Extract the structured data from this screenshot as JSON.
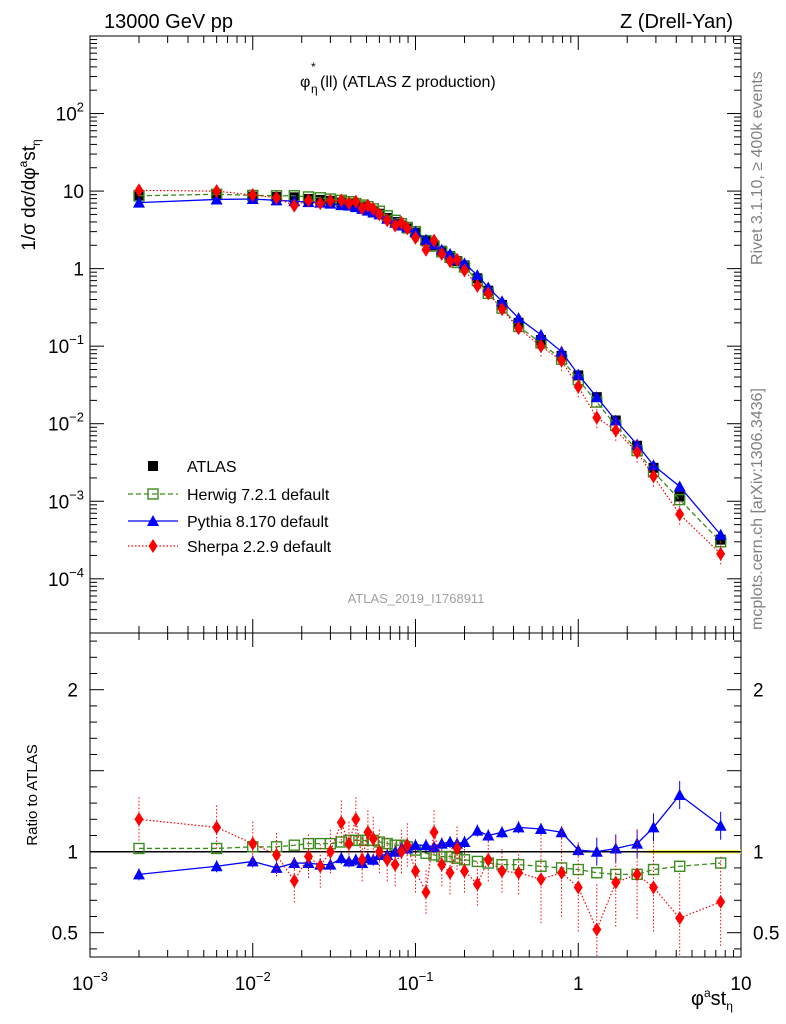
{
  "header": {
    "energy": "13000 GeV pp",
    "process": "Z (Drell-Yan)",
    "plot_title": "φ*η(ll) (ATLAS Z production)",
    "rivet_label": "Rivet 3.1.10, ≥ 400k events",
    "mcplots_label": "mcplots.cern.ch [arXiv:1306.3436]",
    "analysis": "ATLAS_2019_I1768911"
  },
  "axes": {
    "ylabel_top": "1/σ dσ/dφ*st_η",
    "ylabel_bottom": "Ratio to ATLAS",
    "xlabel": "φ*st_η",
    "x_range": [
      0.001,
      10
    ],
    "y_top_range": [
      2e-05,
      1000
    ],
    "y_ratio_range": [
      0.35,
      2.35
    ],
    "x_scale": "log",
    "y_top_scale": "log"
  },
  "colors": {
    "data": "#000000",
    "herwig": "#3a8c1d",
    "pythia": "#0000ff",
    "sherpa": "#ff0000",
    "band": "#ffff66"
  },
  "legend": [
    {
      "label": "ATLAS",
      "series": "data"
    },
    {
      "label": "Herwig 7.2.1 default",
      "series": "herwig"
    },
    {
      "label": "Pythia 8.170 default",
      "series": "pythia"
    },
    {
      "label": "Sherpa 2.2.9 default",
      "series": "sherpa"
    }
  ],
  "chart_data": {
    "type": "scatter",
    "x": [
      0.002,
      0.006,
      0.01,
      0.014,
      0.018,
      0.022,
      0.026,
      0.03,
      0.035,
      0.039,
      0.043,
      0.047,
      0.051,
      0.055,
      0.06,
      0.067,
      0.075,
      0.082,
      0.089,
      0.1,
      0.116,
      0.13,
      0.145,
      0.163,
      0.18,
      0.2,
      0.24,
      0.28,
      0.34,
      0.43,
      0.59,
      0.79,
      1.0,
      1.3,
      1.7,
      2.3,
      2.9,
      4.2,
      7.5
    ],
    "series": [
      {
        "name": "ATLAS",
        "values": [
          8.5,
          8.9,
          8.5,
          8.4,
          8.3,
          7.9,
          7.7,
          7.5,
          7.1,
          6.8,
          6.5,
          6.2,
          5.8,
          5.5,
          5.1,
          4.5,
          4.0,
          3.6,
          3.3,
          2.9,
          2.3,
          2.0,
          1.7,
          1.45,
          1.25,
          1.1,
          0.75,
          0.52,
          0.34,
          0.2,
          0.12,
          0.075,
          0.042,
          0.022,
          0.011,
          0.0052,
          0.0027,
          0.00115,
          0.00032
        ]
      },
      {
        "name": "Herwig 7.2.1 default",
        "values": [
          8.7,
          9.1,
          8.8,
          8.7,
          8.7,
          8.4,
          8.2,
          7.9,
          7.6,
          7.3,
          6.9,
          6.6,
          6.3,
          5.9,
          5.5,
          4.8,
          4.2,
          3.8,
          3.4,
          3.0,
          2.3,
          1.95,
          1.65,
          1.4,
          1.2,
          1.05,
          0.7,
          0.48,
          0.31,
          0.18,
          0.11,
          0.068,
          0.037,
          0.019,
          0.0095,
          0.0045,
          0.0024,
          0.00105,
          0.0003
        ]
      },
      {
        "name": "Pythia 8.170 default",
        "values": [
          7.1,
          7.8,
          7.9,
          7.6,
          7.4,
          7.2,
          7.1,
          6.9,
          6.6,
          6.5,
          6.2,
          5.9,
          5.6,
          5.3,
          5.0,
          4.4,
          3.9,
          3.6,
          3.4,
          3.0,
          2.35,
          2.05,
          1.75,
          1.55,
          1.3,
          1.17,
          0.82,
          0.57,
          0.38,
          0.23,
          0.14,
          0.085,
          0.043,
          0.022,
          0.011,
          0.0054,
          0.0029,
          0.00155,
          0.00037
        ]
      },
      {
        "name": "Sherpa 2.2.9 default",
        "values": [
          10.2,
          10.0,
          8.9,
          8.2,
          6.5,
          7.6,
          7.0,
          7.5,
          7.6,
          7.0,
          7.3,
          6.0,
          6.5,
          5.9,
          5.0,
          4.2,
          3.6,
          3.9,
          3.3,
          2.5,
          1.75,
          2.3,
          1.55,
          1.25,
          1.3,
          0.95,
          0.6,
          0.48,
          0.3,
          0.17,
          0.1,
          0.065,
          0.03,
          0.012,
          0.0082,
          0.0043,
          0.0021,
          0.00068,
          0.00021
        ]
      }
    ],
    "ratio_series": [
      {
        "name": "Herwig 7.2.1 default",
        "values": [
          1.02,
          1.02,
          1.03,
          1.03,
          1.04,
          1.05,
          1.05,
          1.05,
          1.06,
          1.07,
          1.07,
          1.07,
          1.07,
          1.07,
          1.06,
          1.05,
          1.04,
          1.04,
          1.03,
          1.01,
          0.99,
          0.98,
          0.97,
          0.97,
          0.96,
          0.95,
          0.94,
          0.93,
          0.92,
          0.92,
          0.91,
          0.9,
          0.89,
          0.87,
          0.86,
          0.86,
          0.89,
          0.91,
          0.93
        ]
      },
      {
        "name": "Pythia 8.170 default",
        "values": [
          0.86,
          0.91,
          0.94,
          0.9,
          0.93,
          0.93,
          0.92,
          0.92,
          0.96,
          0.94,
          0.95,
          0.93,
          0.96,
          0.95,
          0.98,
          0.98,
          1.0,
          1.02,
          1.02,
          1.04,
          1.04,
          1.03,
          1.05,
          1.06,
          1.05,
          1.06,
          1.13,
          1.1,
          1.12,
          1.15,
          1.14,
          1.12,
          1.01,
          1.0,
          1.02,
          1.05,
          1.15,
          1.35,
          1.16
        ]
      },
      {
        "name": "Sherpa 2.2.9 default",
        "values": [
          1.2,
          1.15,
          1.05,
          0.98,
          0.82,
          0.97,
          0.91,
          1.0,
          1.18,
          1.05,
          1.2,
          0.95,
          1.12,
          1.08,
          1.0,
          0.95,
          0.92,
          1.0,
          1.04,
          0.88,
          0.75,
          1.12,
          0.92,
          0.87,
          1.02,
          0.88,
          0.8,
          0.95,
          0.88,
          0.87,
          0.83,
          0.87,
          0.78,
          0.52,
          0.81,
          0.86,
          0.78,
          0.59,
          0.69
        ]
      }
    ],
    "xlabel": "φ*st_η",
    "ylabel": "1/σ dσ/dφ*st_η",
    "xlim": [
      0.001,
      10
    ],
    "ylim": [
      2e-05,
      1000
    ],
    "ratio_ylim": [
      0.35,
      2.35
    ],
    "grid": false,
    "legend_position": "bottom-left"
  }
}
